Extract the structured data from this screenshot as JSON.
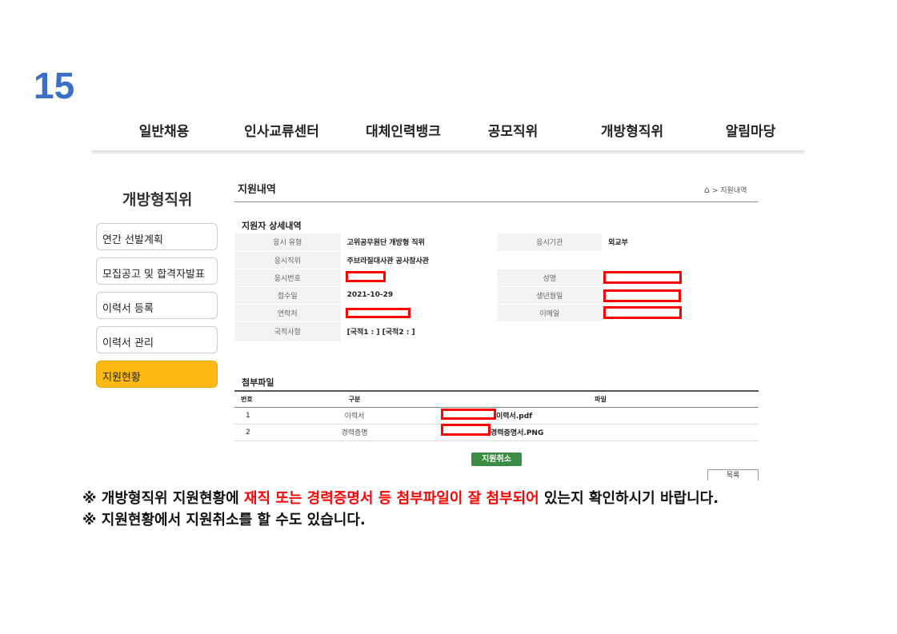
{
  "step_number": "15",
  "nav": [
    "일반채용",
    "인사교류센터",
    "대체인력뱅크",
    "공모직위",
    "개방형직위",
    "알림마당"
  ],
  "sidebar": {
    "title": "개방형직위",
    "items": [
      {
        "label": "연간 선발계획"
      },
      {
        "label": "모집공고 및 합격자발표"
      },
      {
        "label": "이력서 등록"
      },
      {
        "label": "이력서 관리"
      },
      {
        "label": "지원현황",
        "active": true
      }
    ]
  },
  "content": {
    "title": "지원내역",
    "breadcrumb": "> 지원내역",
    "detail_title": "지원자 상세내역",
    "detail": {
      "exam_type_label": "응시 유형",
      "exam_type": "고위공무원단 개방형 직위",
      "agency_label": "응시기관",
      "agency": "외교부",
      "position_label": "응시직위",
      "position": "주브라질대사관 공사참사관",
      "exam_no_label": "응시번호",
      "name_label": "성명",
      "date_label": "접수일",
      "date": "2021-10-29",
      "birth_label": "생년월일",
      "contact_label": "연락처",
      "email_label": "이메일",
      "nationality_label": "국적사항",
      "nationality": "[국적1 : ] [국적2 : ]"
    },
    "files_title": "첨부파일",
    "files_headers": [
      "번호",
      "구분",
      "파일"
    ],
    "files": [
      {
        "no": "1",
        "type": "이력서",
        "file": "이력서.pdf"
      },
      {
        "no": "2",
        "type": "경력증명",
        "file": "경력증명서.PNG"
      }
    ],
    "cancel_label": "지원취소",
    "list_label": "목록"
  },
  "notes": {
    "line1_a": "※ 개방형직위 지원현황에 ",
    "line1_highlight": "재직 또는 경력증명서 등 첨부파일이 잘 첨부되어",
    "line1_b": " 있는지 확인하시기 바랍니다.",
    "line2": "※ 지원현황에서 지원취소를 할 수도 있습니다."
  },
  "colors": {
    "step": "#3b70c6",
    "active": "#fdb813",
    "cancel": "#3c8c44",
    "highlight": "#ff0000",
    "redaction": "#ff0000"
  }
}
